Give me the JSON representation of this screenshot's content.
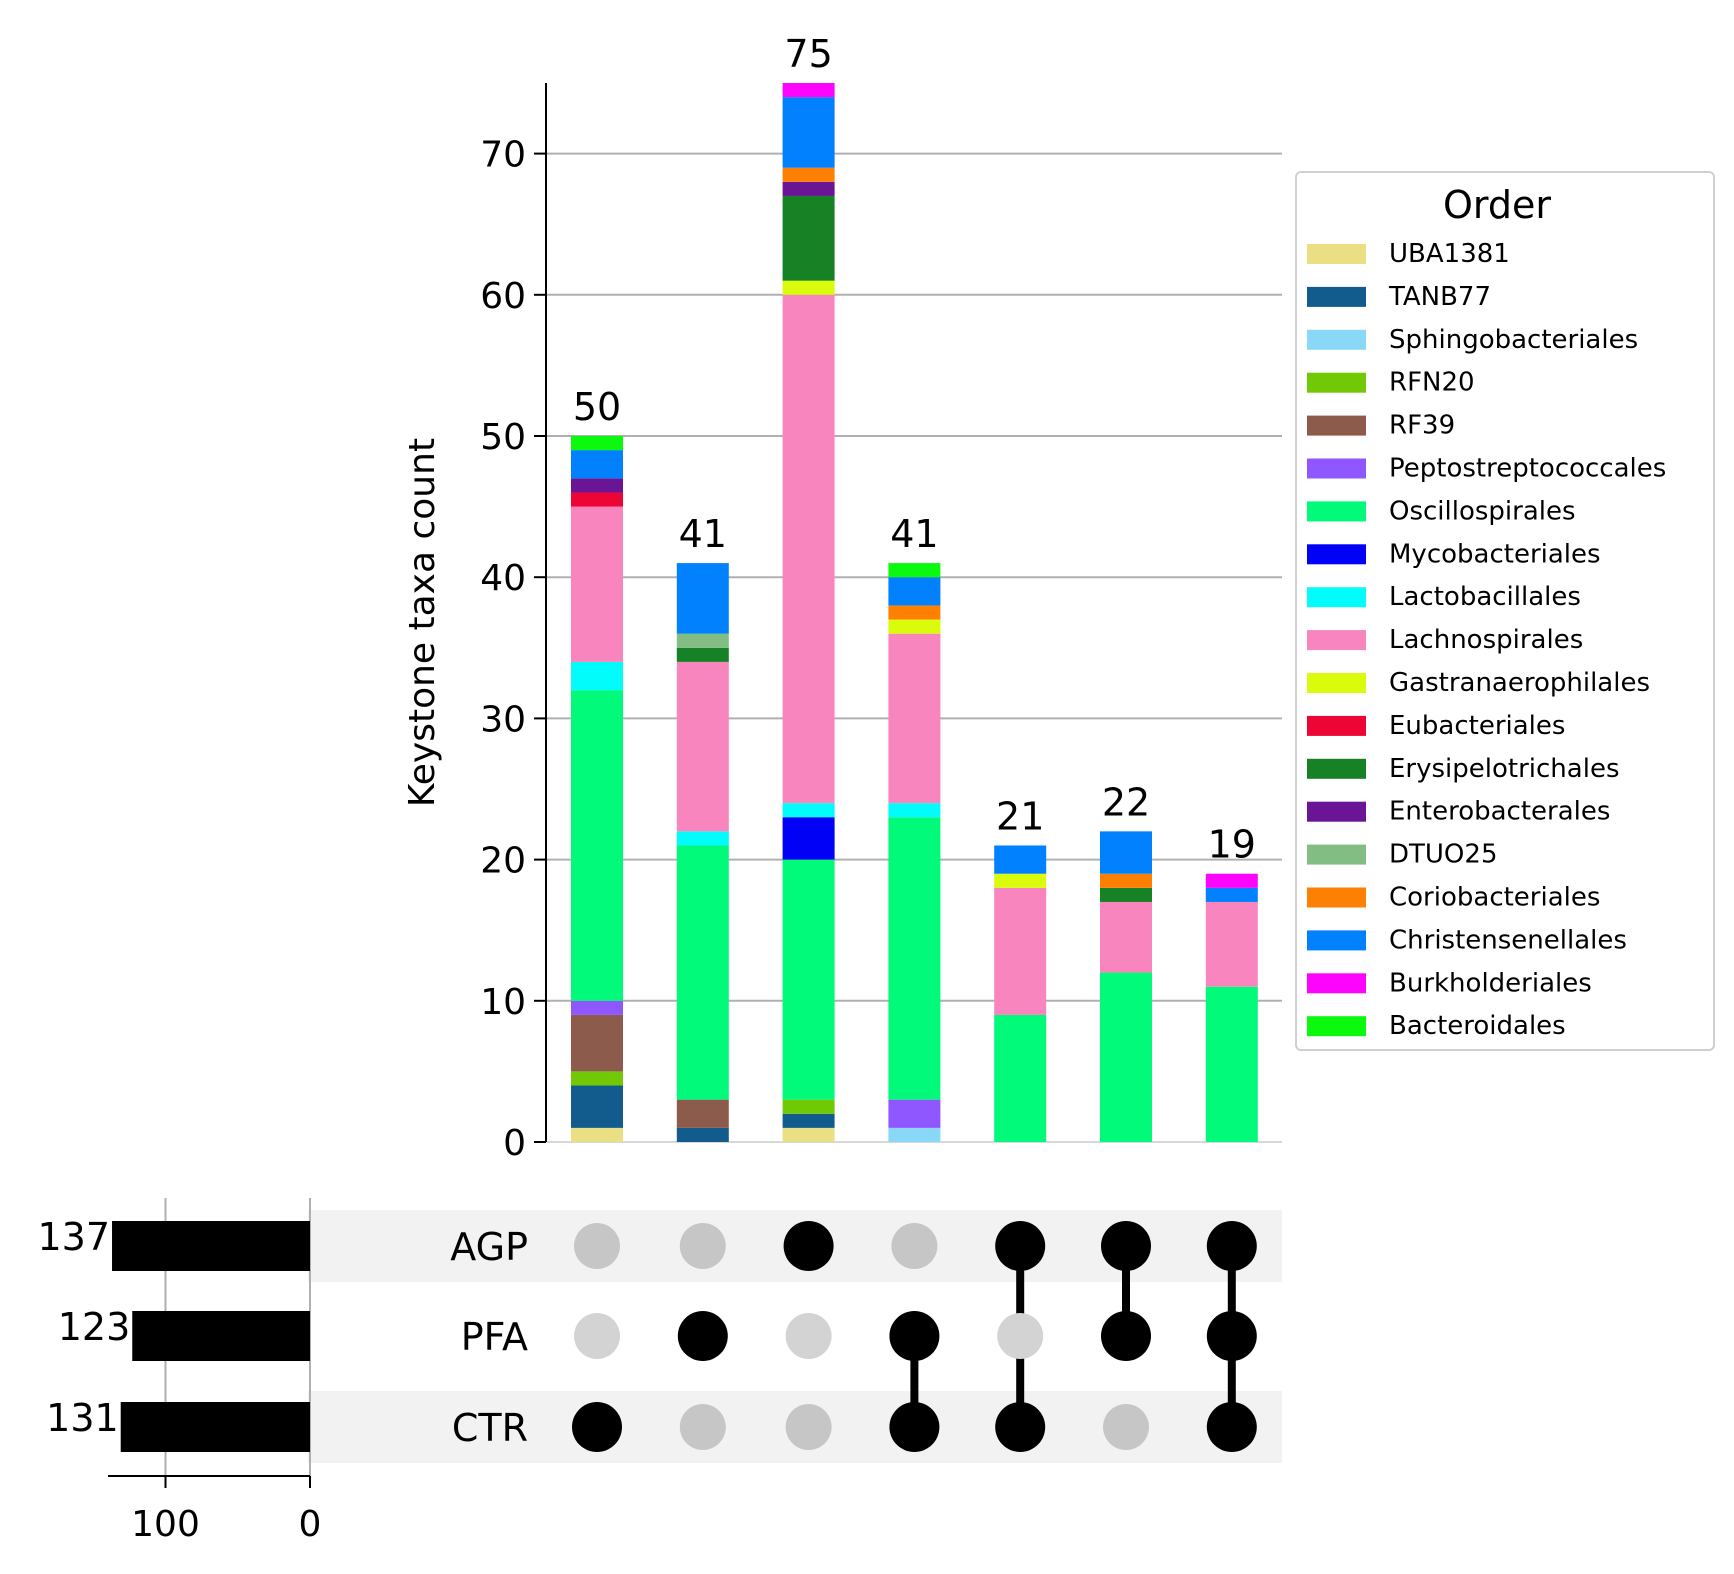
{
  "chart_data": {
    "type": "upset",
    "ylabel": "Keystone taxa count",
    "ylim": [
      0,
      75
    ],
    "y_ticks": [
      0,
      10,
      20,
      30,
      40,
      50,
      60,
      70
    ],
    "grid": true,
    "legend": {
      "title": "Order",
      "placement": "right"
    },
    "sets": [
      {
        "name": "AGP",
        "size": 137
      },
      {
        "name": "PFA",
        "size": 123
      },
      {
        "name": "CTR",
        "size": 131
      }
    ],
    "set_size_ticks": [
      100,
      0
    ],
    "intersections": [
      {
        "members": [
          "CTR"
        ],
        "total": 50
      },
      {
        "members": [
          "PFA"
        ],
        "total": 41
      },
      {
        "members": [
          "AGP"
        ],
        "total": 75
      },
      {
        "members": [
          "PFA",
          "CTR"
        ],
        "total": 41
      },
      {
        "members": [
          "AGP",
          "CTR"
        ],
        "total": 21
      },
      {
        "members": [
          "AGP",
          "PFA"
        ],
        "total": 22
      },
      {
        "members": [
          "AGP",
          "PFA",
          "CTR"
        ],
        "total": 19
      }
    ],
    "series": [
      {
        "name": "UBA1381",
        "color": "#EAE083",
        "values": [
          1,
          0,
          1,
          0,
          0,
          0,
          0
        ]
      },
      {
        "name": "TANB77",
        "color": "#115C8C",
        "values": [
          3,
          1,
          1,
          0,
          0,
          0,
          0
        ]
      },
      {
        "name": "Sphingobacteriales",
        "color": "#8AD8F8",
        "values": [
          0,
          0,
          0,
          1,
          0,
          0,
          0
        ]
      },
      {
        "name": "RFN20",
        "color": "#71C906",
        "values": [
          1,
          0,
          1,
          0,
          0,
          0,
          0
        ]
      },
      {
        "name": "RF39",
        "color": "#8D5B4C",
        "values": [
          4,
          2,
          0,
          0,
          0,
          0,
          0
        ]
      },
      {
        "name": "Peptostreptococcales",
        "color": "#8F57FF",
        "values": [
          1,
          0,
          0,
          2,
          0,
          0,
          0
        ]
      },
      {
        "name": "Oscillospirales",
        "color": "#01FA7A",
        "values": [
          22,
          18,
          17,
          20,
          9,
          12,
          11
        ]
      },
      {
        "name": "Mycobacteriales",
        "color": "#0101F5",
        "values": [
          0,
          0,
          3,
          0,
          0,
          0,
          0
        ]
      },
      {
        "name": "Lactobacillales",
        "color": "#02FBFB",
        "values": [
          2,
          1,
          1,
          1,
          0,
          0,
          0
        ]
      },
      {
        "name": "Lachnospirales",
        "color": "#F885BE",
        "values": [
          11,
          12,
          36,
          12,
          9,
          5,
          6
        ]
      },
      {
        "name": "Gastranaerophilales",
        "color": "#DAFB0B",
        "values": [
          0,
          0,
          1,
          1,
          1,
          0,
          0
        ]
      },
      {
        "name": "Eubacteriales",
        "color": "#EC0535",
        "values": [
          1,
          0,
          0,
          0,
          0,
          0,
          0
        ]
      },
      {
        "name": "Erysipelotrichales",
        "color": "#178125",
        "values": [
          0,
          1,
          6,
          0,
          0,
          1,
          0
        ]
      },
      {
        "name": "Enterobacterales",
        "color": "#6A1596",
        "values": [
          1,
          0,
          1,
          0,
          0,
          0,
          0
        ]
      },
      {
        "name": "DTUO25",
        "color": "#82BE84",
        "values": [
          0,
          1,
          0,
          0,
          0,
          0,
          0
        ]
      },
      {
        "name": "Coriobacteriales",
        "color": "#FE8003",
        "values": [
          0,
          0,
          1,
          1,
          0,
          1,
          0
        ]
      },
      {
        "name": "Christensenellales",
        "color": "#0181FD",
        "values": [
          2,
          5,
          5,
          2,
          2,
          3,
          1
        ]
      },
      {
        "name": "Burkholderiales",
        "color": "#FD04FD",
        "values": [
          0,
          0,
          1,
          0,
          0,
          0,
          1
        ]
      },
      {
        "name": "Bacteroidales",
        "color": "#0BF90F",
        "values": [
          1,
          0,
          0,
          1,
          0,
          0,
          0
        ]
      }
    ]
  }
}
